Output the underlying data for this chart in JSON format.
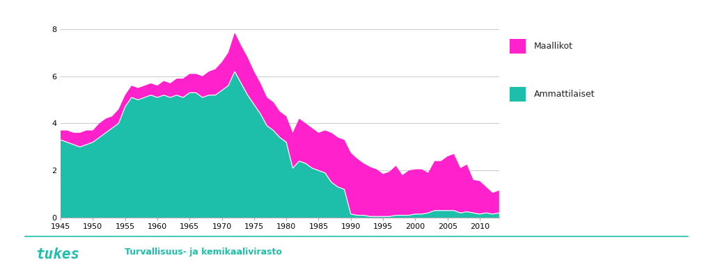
{
  "years": [
    1945,
    1946,
    1947,
    1948,
    1949,
    1950,
    1951,
    1952,
    1953,
    1954,
    1955,
    1956,
    1957,
    1958,
    1959,
    1960,
    1961,
    1962,
    1963,
    1964,
    1965,
    1966,
    1967,
    1968,
    1969,
    1970,
    1971,
    1972,
    1973,
    1974,
    1975,
    1976,
    1977,
    1978,
    1979,
    1980,
    1981,
    1982,
    1983,
    1984,
    1985,
    1986,
    1987,
    1988,
    1989,
    1990,
    1991,
    1992,
    1993,
    1994,
    1995,
    1996,
    1997,
    1998,
    1999,
    2000,
    2001,
    2002,
    2003,
    2004,
    2005,
    2006,
    2007,
    2008,
    2009,
    2010,
    2011,
    2012,
    2013
  ],
  "professionals": [
    3.3,
    3.2,
    3.1,
    3.0,
    3.1,
    3.2,
    3.4,
    3.6,
    3.8,
    4.0,
    4.7,
    5.1,
    5.0,
    5.1,
    5.2,
    5.1,
    5.2,
    5.1,
    5.2,
    5.1,
    5.3,
    5.3,
    5.1,
    5.2,
    5.2,
    5.4,
    5.6,
    6.2,
    5.7,
    5.2,
    4.8,
    4.4,
    3.9,
    3.7,
    3.4,
    3.2,
    2.1,
    2.4,
    2.3,
    2.1,
    2.0,
    1.9,
    1.5,
    1.3,
    1.2,
    0.15,
    0.1,
    0.1,
    0.05,
    0.05,
    0.05,
    0.05,
    0.1,
    0.1,
    0.1,
    0.15,
    0.15,
    0.2,
    0.3,
    0.3,
    0.3,
    0.3,
    0.2,
    0.25,
    0.2,
    0.15,
    0.2,
    0.15,
    0.2
  ],
  "laypeople": [
    0.4,
    0.5,
    0.5,
    0.6,
    0.6,
    0.5,
    0.6,
    0.6,
    0.5,
    0.6,
    0.5,
    0.5,
    0.5,
    0.5,
    0.5,
    0.5,
    0.6,
    0.6,
    0.7,
    0.8,
    0.8,
    0.8,
    0.9,
    1.0,
    1.1,
    1.2,
    1.4,
    1.65,
    1.6,
    1.6,
    1.4,
    1.3,
    1.2,
    1.2,
    1.1,
    1.1,
    1.5,
    1.8,
    1.7,
    1.7,
    1.6,
    1.8,
    2.1,
    2.1,
    2.1,
    2.6,
    2.4,
    2.2,
    2.1,
    2.0,
    1.8,
    1.9,
    2.1,
    1.7,
    1.9,
    1.9,
    1.9,
    1.7,
    2.1,
    2.1,
    2.3,
    2.4,
    1.9,
    2.0,
    1.4,
    1.4,
    1.1,
    0.9,
    0.95
  ],
  "color_professionals": "#1dbfaa",
  "color_laypeople": "#ff22cc",
  "legend_professionals": "Ammattilaiset",
  "legend_laypeople": "Maallikot",
  "ylim": [
    0,
    8.5
  ],
  "yticks": [
    0,
    2,
    4,
    6,
    8
  ],
  "xticks": [
    1945,
    1950,
    1955,
    1960,
    1965,
    1970,
    1975,
    1980,
    1985,
    1990,
    1995,
    2000,
    2005,
    2010
  ],
  "background_color": "#ffffff",
  "grid_color": "#cccccc",
  "footer_line_color": "#1dbfaa",
  "footer_text": "Turvallisuus- ja kemikaalivirasto",
  "footer_text_color": "#1dbfaa"
}
